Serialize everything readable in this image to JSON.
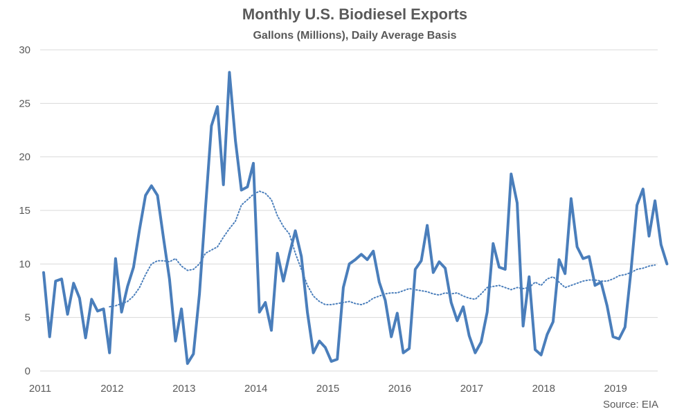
{
  "chart_data": {
    "type": "line",
    "title": "Monthly U.S. Biodiesel Exports",
    "subtitle": "Gallons (Millions), Daily Average Basis",
    "source": "Source: EIA",
    "ylim": [
      0,
      30
    ],
    "y_ticks": [
      0,
      5,
      10,
      15,
      20,
      25,
      30
    ],
    "x_tick_labels": [
      "2011",
      "2012",
      "2013",
      "2014",
      "2015",
      "2016",
      "2017",
      "2018",
      "2019"
    ],
    "start": "2011-01",
    "grid": true,
    "colors": {
      "series": "#4a7ebb",
      "grid": "#d9d9d9",
      "text": "#595959"
    },
    "series": [
      {
        "style": "solid",
        "values": [
          9.2,
          3.2,
          8.4,
          8.6,
          5.3,
          8.2,
          6.8,
          3.1,
          6.7,
          5.6,
          5.8,
          1.7,
          10.5,
          5.5,
          7.9,
          9.7,
          13.2,
          16.4,
          17.3,
          16.4,
          12.4,
          8.6,
          2.8,
          5.8,
          0.7,
          1.6,
          7.2,
          15.2,
          22.9,
          24.7,
          17.4,
          27.9,
          21.5,
          16.9,
          17.2,
          19.4,
          5.5,
          6.4,
          3.8,
          11.0,
          8.4,
          10.9,
          13.1,
          10.7,
          5.5,
          1.7,
          2.8,
          2.2,
          0.9,
          1.1,
          7.8,
          10.0,
          10.4,
          10.9,
          10.4,
          11.2,
          8.3,
          6.6,
          3.2,
          5.4,
          1.7,
          2.1,
          9.5,
          10.3,
          13.6,
          9.2,
          10.2,
          9.6,
          6.4,
          4.7,
          6.0,
          3.3,
          1.7,
          2.7,
          5.5,
          11.9,
          9.7,
          9.5,
          18.4,
          15.7,
          4.2,
          8.8,
          2.0,
          1.5,
          3.4,
          4.6,
          10.4,
          9.1,
          16.1,
          11.6,
          10.5,
          10.7,
          8.0,
          8.3,
          6.1,
          3.2,
          3.0,
          4.1,
          9.4,
          15.5,
          17.0,
          12.6,
          15.9,
          11.8,
          10.0
        ]
      },
      {
        "style": "dotted",
        "start": "2011-12",
        "values": [
          6.0,
          6.1,
          6.3,
          6.5,
          7.0,
          7.8,
          9.0,
          10.0,
          10.3,
          10.3,
          10.2,
          10.5,
          9.8,
          9.4,
          9.5,
          10.0,
          11.0,
          11.3,
          11.6,
          12.5,
          13.3,
          14.0,
          15.5,
          16.0,
          16.5,
          16.8,
          16.6,
          16.0,
          14.5,
          13.5,
          12.8,
          11.0,
          9.5,
          8.0,
          7.0,
          6.5,
          6.2,
          6.2,
          6.3,
          6.4,
          6.5,
          6.3,
          6.2,
          6.4,
          6.8,
          7.0,
          7.2,
          7.3,
          7.3,
          7.5,
          7.7,
          7.6,
          7.5,
          7.4,
          7.2,
          7.1,
          7.3,
          7.2,
          7.3,
          7.0,
          6.8,
          6.7,
          7.2,
          7.8,
          7.9,
          8.0,
          7.8,
          7.6,
          7.8,
          7.7,
          7.8,
          8.3,
          8.0,
          8.6,
          8.8,
          8.3,
          7.8,
          8.0,
          8.2,
          8.4,
          8.5,
          8.5,
          8.4,
          8.4,
          8.6,
          8.9,
          9.0,
          9.2,
          9.5,
          9.6,
          9.8,
          9.9
        ]
      }
    ]
  }
}
